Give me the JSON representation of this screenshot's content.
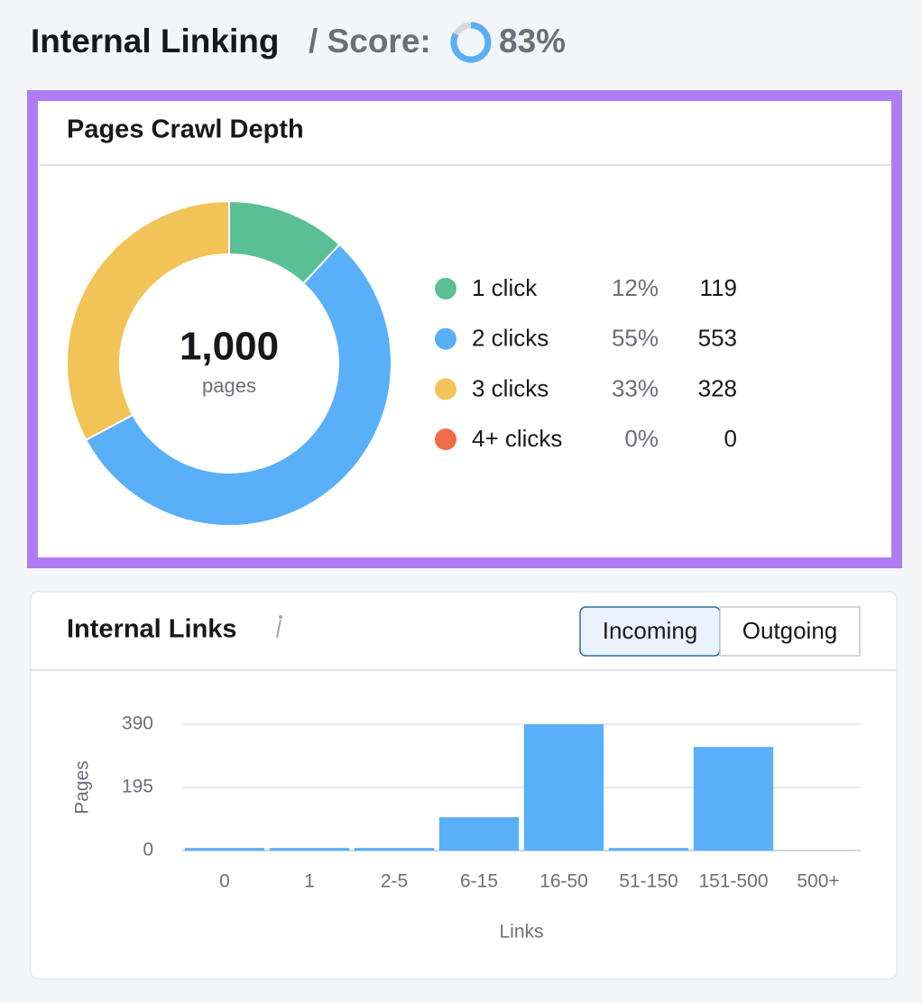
{
  "header": {
    "title": "Internal Linking",
    "score_label": "/ Score:",
    "score": 83,
    "score_text": "83%"
  },
  "chart_data": [
    {
      "type": "donut",
      "title": "Pages Crawl Depth",
      "total": {
        "value": 1000,
        "label": "1,000"
      },
      "total_caption": "pages",
      "categories": [
        "1 click",
        "2 clicks",
        "3 clicks",
        "4+ clicks"
      ],
      "values": [
        119,
        553,
        328,
        0
      ],
      "shares": [
        12,
        55,
        33,
        0
      ],
      "share_labels": [
        "12%",
        "55%",
        "33%",
        "0%"
      ],
      "colors": [
        "#5abf94",
        "#59aff8",
        "#f2c357",
        "#ee6c46"
      ]
    },
    {
      "type": "bar",
      "title": "Internal Links",
      "toggle": [
        "Incoming",
        "Outgoing"
      ],
      "active_toggle": 0,
      "categories": [
        "0",
        "1",
        "2-5",
        "6-15",
        "16-50",
        "51-150",
        "151-500",
        "500+"
      ],
      "values": [
        8,
        8,
        8,
        103,
        390,
        8,
        320,
        0
      ],
      "color": "#59aff8",
      "ylabel": "Pages",
      "xlabel": "Links",
      "ylim": [
        0,
        390
      ],
      "yticks": [
        0,
        195,
        390
      ],
      "grid": true
    }
  ]
}
